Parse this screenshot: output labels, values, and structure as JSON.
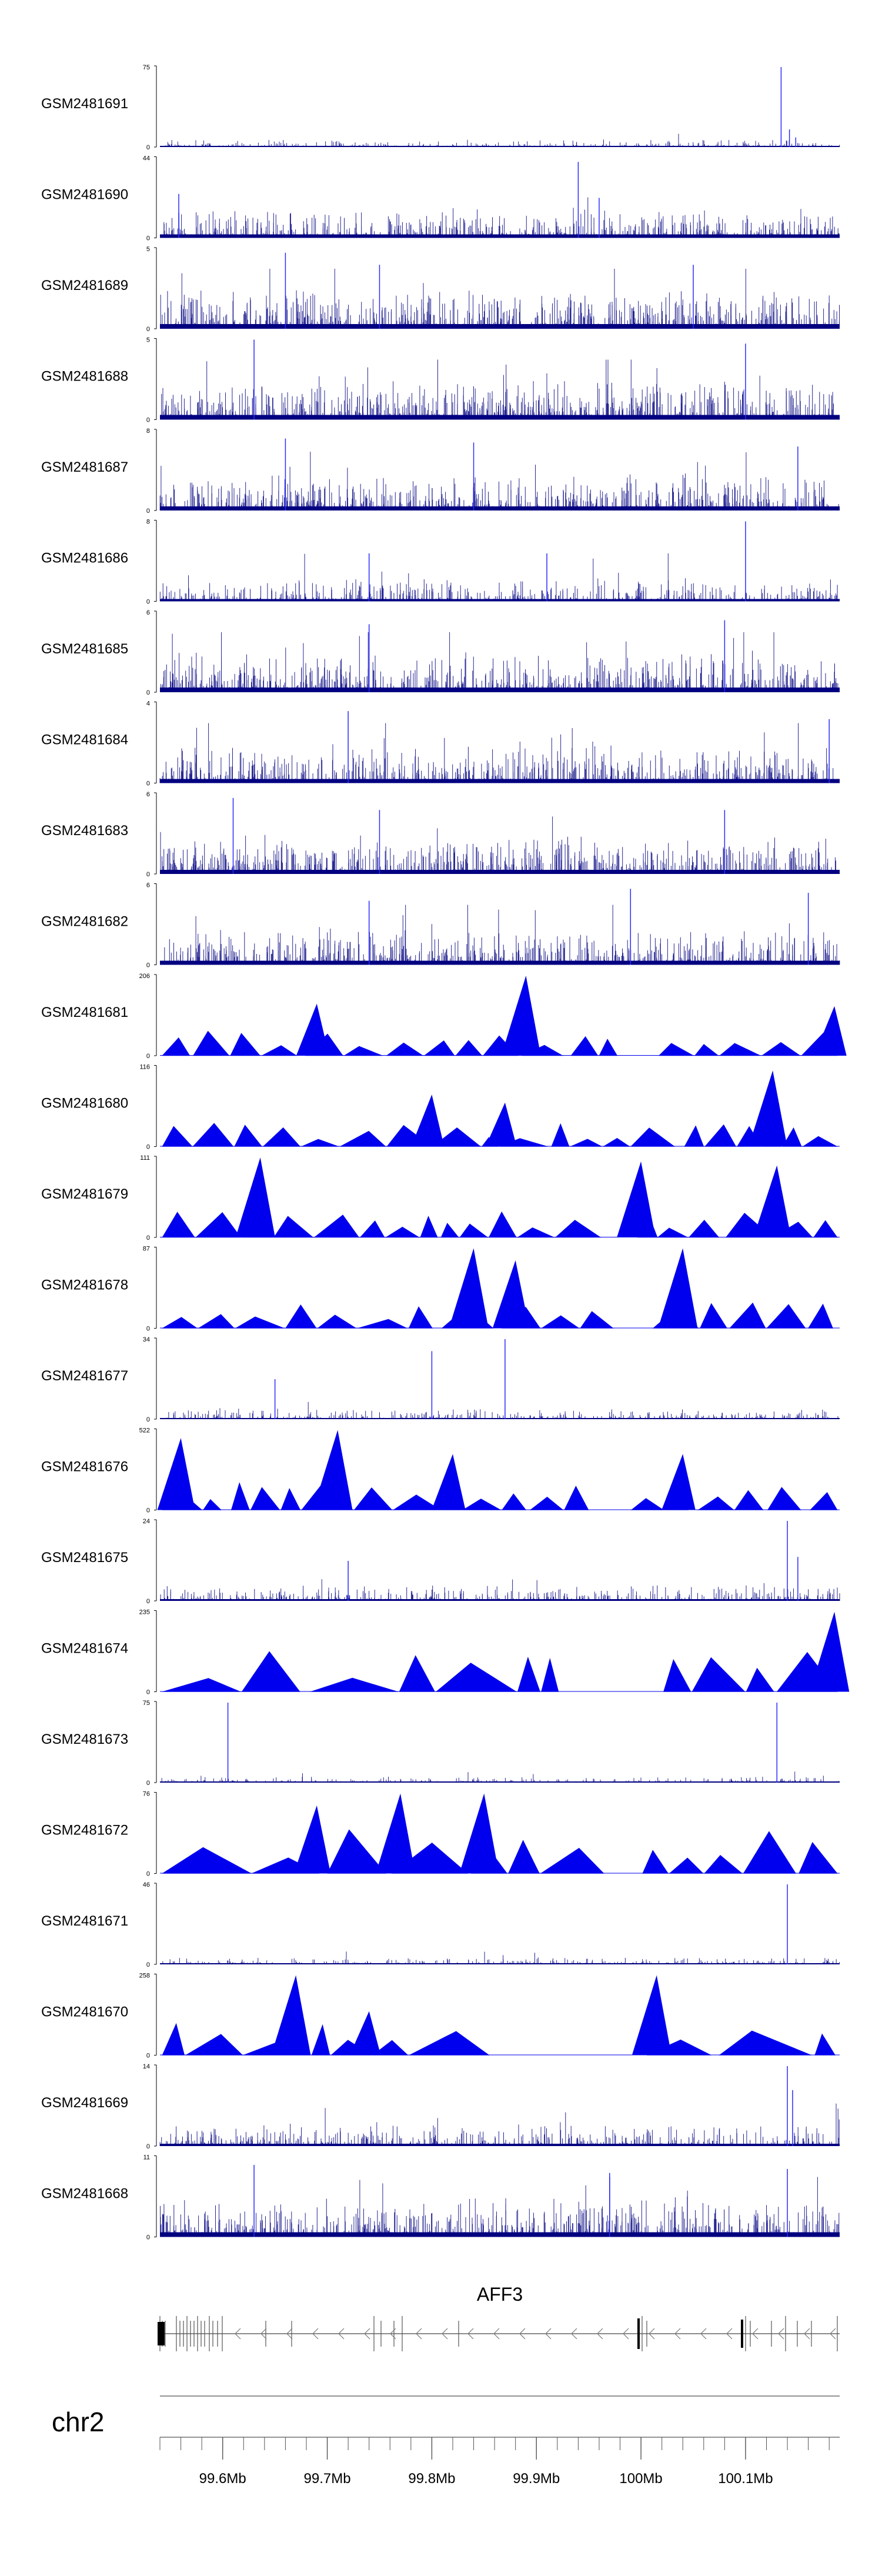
{
  "chart_data": {
    "type": "genome-browser-tracks",
    "title": "",
    "chromosome": "chr2",
    "gene": "AFF3",
    "xrange_mb": [
      99.54,
      100.19
    ],
    "axis_ticks_mb": [
      99.6,
      99.7,
      99.8,
      99.9,
      100.0,
      100.1
    ],
    "axis_tick_labels": [
      "99.6Mb",
      "99.7Mb",
      "99.8Mb",
      "99.9Mb",
      "100Mb",
      "100.1Mb"
    ],
    "colors": {
      "dense": "#000080",
      "sparse": "#0000ee",
      "gene": "#444444",
      "axis": "#555555"
    },
    "tracks": [
      {
        "name": "GSM2481691",
        "ymax": "75",
        "style": "dense",
        "density": 0.1,
        "peaks_mb": [
          [
            100.134,
            1.0
          ],
          [
            100.142,
            0.22
          ],
          [
            100.148,
            0.12
          ]
        ]
      },
      {
        "name": "GSM2481690",
        "ymax": "44",
        "style": "dense",
        "density": 0.42,
        "peaks_mb": [
          [
            99.558,
            0.55
          ],
          [
            99.94,
            0.95
          ],
          [
            99.96,
            0.5
          ]
        ]
      },
      {
        "name": "GSM2481689",
        "ymax": "5",
        "style": "dense",
        "density": 0.55,
        "peaks_mb": [
          [
            99.66,
            0.95
          ],
          [
            99.75,
            0.8
          ],
          [
            100.05,
            0.8
          ]
        ]
      },
      {
        "name": "GSM2481688",
        "ymax": "5",
        "style": "dense",
        "density": 0.55,
        "peaks_mb": [
          [
            99.63,
            1.0
          ],
          [
            100.1,
            0.95
          ]
        ]
      },
      {
        "name": "GSM2481687",
        "ymax": "8",
        "style": "dense",
        "density": 0.5,
        "peaks_mb": [
          [
            99.66,
            0.9
          ],
          [
            99.84,
            0.85
          ],
          [
            100.15,
            0.8
          ]
        ]
      },
      {
        "name": "GSM2481686",
        "ymax": "8",
        "style": "dense",
        "density": 0.3,
        "peaks_mb": [
          [
            100.1,
            1.0
          ],
          [
            99.74,
            0.6
          ],
          [
            99.91,
            0.6
          ]
        ]
      },
      {
        "name": "GSM2481685",
        "ymax": "6",
        "style": "dense",
        "density": 0.55,
        "peaks_mb": [
          [
            99.74,
            0.85
          ],
          [
            100.08,
            0.9
          ]
        ]
      },
      {
        "name": "GSM2481684",
        "ymax": "4",
        "style": "dense",
        "density": 0.5,
        "peaks_mb": [
          [
            99.72,
            0.9
          ],
          [
            100.18,
            0.8
          ]
        ]
      },
      {
        "name": "GSM2481683",
        "ymax": "6",
        "style": "dense",
        "density": 0.52,
        "peaks_mb": [
          [
            99.61,
            0.95
          ],
          [
            99.75,
            0.8
          ],
          [
            100.08,
            0.8
          ]
        ]
      },
      {
        "name": "GSM2481682",
        "ymax": "6",
        "style": "dense",
        "density": 0.5,
        "peaks_mb": [
          [
            99.99,
            0.95
          ],
          [
            100.16,
            0.9
          ],
          [
            99.74,
            0.8
          ]
        ]
      },
      {
        "name": "GSM2481681",
        "ymax": "206",
        "style": "sparse",
        "scale": 0.32,
        "gaps_mb": [
          [
            99.985,
            99.995
          ]
        ],
        "peaks_mb": [
          [
            99.69,
            0.65
          ],
          [
            99.89,
            1.0
          ],
          [
            100.185,
            0.62
          ]
        ]
      },
      {
        "name": "GSM2481680",
        "ymax": "116",
        "style": "sparse",
        "scale": 0.3,
        "gaps_mb": [],
        "peaks_mb": [
          [
            100.126,
            0.95
          ],
          [
            99.8,
            0.65
          ],
          [
            99.87,
            0.55
          ]
        ]
      },
      {
        "name": "GSM2481679",
        "ymax": "111",
        "style": "sparse",
        "scale": 0.32,
        "gaps_mb": [
          [
            99.97,
            99.98
          ]
        ],
        "peaks_mb": [
          [
            99.636,
            1.0
          ],
          [
            100.0,
            0.95
          ],
          [
            100.13,
            0.9
          ]
        ]
      },
      {
        "name": "GSM2481678",
        "ymax": "87",
        "style": "sparse",
        "scale": 0.32,
        "gaps_mb": [
          [
            99.99,
            100.0
          ]
        ],
        "peaks_mb": [
          [
            99.84,
            1.0
          ],
          [
            99.88,
            0.85
          ],
          [
            100.04,
            1.0
          ]
        ]
      },
      {
        "name": "GSM2481677",
        "ymax": "34",
        "style": "dense",
        "density": 0.15,
        "peaks_mb": [
          [
            99.87,
            1.0
          ],
          [
            99.8,
            0.85
          ],
          [
            99.65,
            0.5
          ]
        ]
      },
      {
        "name": "GSM2481676",
        "ymax": "522",
        "style": "sparse",
        "scale": 0.35,
        "gaps_mb": [
          [
            99.97,
            99.985
          ]
        ],
        "peaks_mb": [
          [
            99.56,
            0.9
          ],
          [
            99.71,
            1.0
          ],
          [
            99.82,
            0.7
          ],
          [
            100.04,
            0.7
          ]
        ]
      },
      {
        "name": "GSM2481675",
        "ymax": "24",
        "style": "dense",
        "density": 0.22,
        "peaks_mb": [
          [
            100.14,
            1.0
          ],
          [
            100.15,
            0.55
          ],
          [
            99.72,
            0.5
          ]
        ]
      },
      {
        "name": "GSM2481674",
        "ymax": "235",
        "style": "sparse",
        "scale": 0.55,
        "gaps_mb": [
          [
            99.93,
            99.97
          ]
        ],
        "peaks_mb": [
          [
            100.185,
            1.0
          ]
        ]
      },
      {
        "name": "GSM2481673",
        "ymax": "75",
        "style": "dense",
        "density": 0.08,
        "peaks_mb": [
          [
            99.605,
            1.0
          ],
          [
            100.13,
            1.0
          ]
        ]
      },
      {
        "name": "GSM2481672",
        "ymax": "76",
        "style": "sparse",
        "scale": 0.55,
        "gaps_mb": [
          [
            99.985,
            99.99
          ]
        ],
        "peaks_mb": [
          [
            99.77,
            1.0
          ],
          [
            99.85,
            1.0
          ],
          [
            99.69,
            0.85
          ]
        ]
      },
      {
        "name": "GSM2481671",
        "ymax": "46",
        "style": "dense",
        "density": 0.1,
        "peaks_mb": [
          [
            100.14,
            1.0
          ]
        ]
      },
      {
        "name": "GSM2481670",
        "ymax": "258",
        "style": "sparse",
        "scale": 0.45,
        "gaps_mb": [
          [
            99.94,
            99.97
          ]
        ],
        "peaks_mb": [
          [
            99.67,
            1.0
          ],
          [
            100.015,
            1.0
          ],
          [
            99.74,
            0.55
          ]
        ]
      },
      {
        "name": "GSM2481669",
        "ymax": "14",
        "style": "dense",
        "density": 0.3,
        "peaks_mb": [
          [
            100.14,
            1.0
          ],
          [
            100.145,
            0.7
          ]
        ]
      },
      {
        "name": "GSM2481668",
        "ymax": "11",
        "style": "dense",
        "density": 0.55,
        "peaks_mb": [
          [
            99.63,
            0.9
          ],
          [
            100.14,
            0.85
          ],
          [
            99.97,
            0.8
          ]
        ]
      }
    ]
  }
}
